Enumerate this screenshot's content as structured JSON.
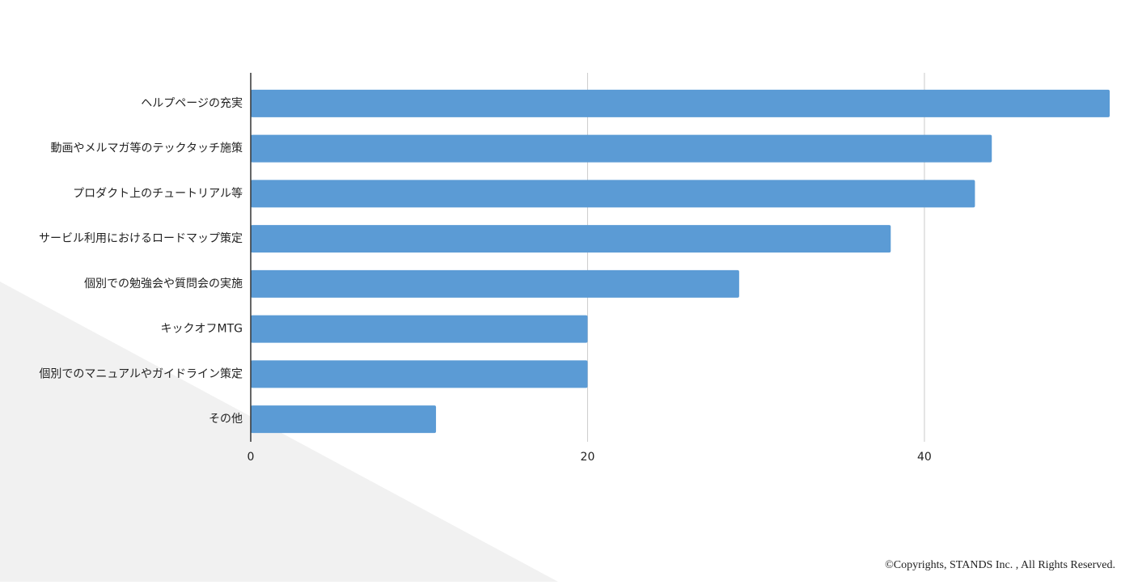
{
  "chart_data": {
    "type": "bar",
    "orientation": "horizontal",
    "categories": [
      "ヘルプページの充実",
      "動画やメルマガ等のテックタッチ施策",
      "プロダクト上のチュートリアル等",
      "サービル利用におけるロードマップ策定",
      "個別での勉強会や質問会の実施",
      "キックオフMTG",
      "個別でのマニュアルやガイドライン策定",
      "その他"
    ],
    "values": [
      51,
      44,
      43,
      38,
      29,
      20,
      20,
      11
    ],
    "color": "#5b9bd5",
    "xlim": [
      0,
      51
    ],
    "xticks": [
      0,
      20,
      40
    ],
    "grid": true
  },
  "footer": "©Copyrights, STANDS Inc. , All Rights Reserved."
}
